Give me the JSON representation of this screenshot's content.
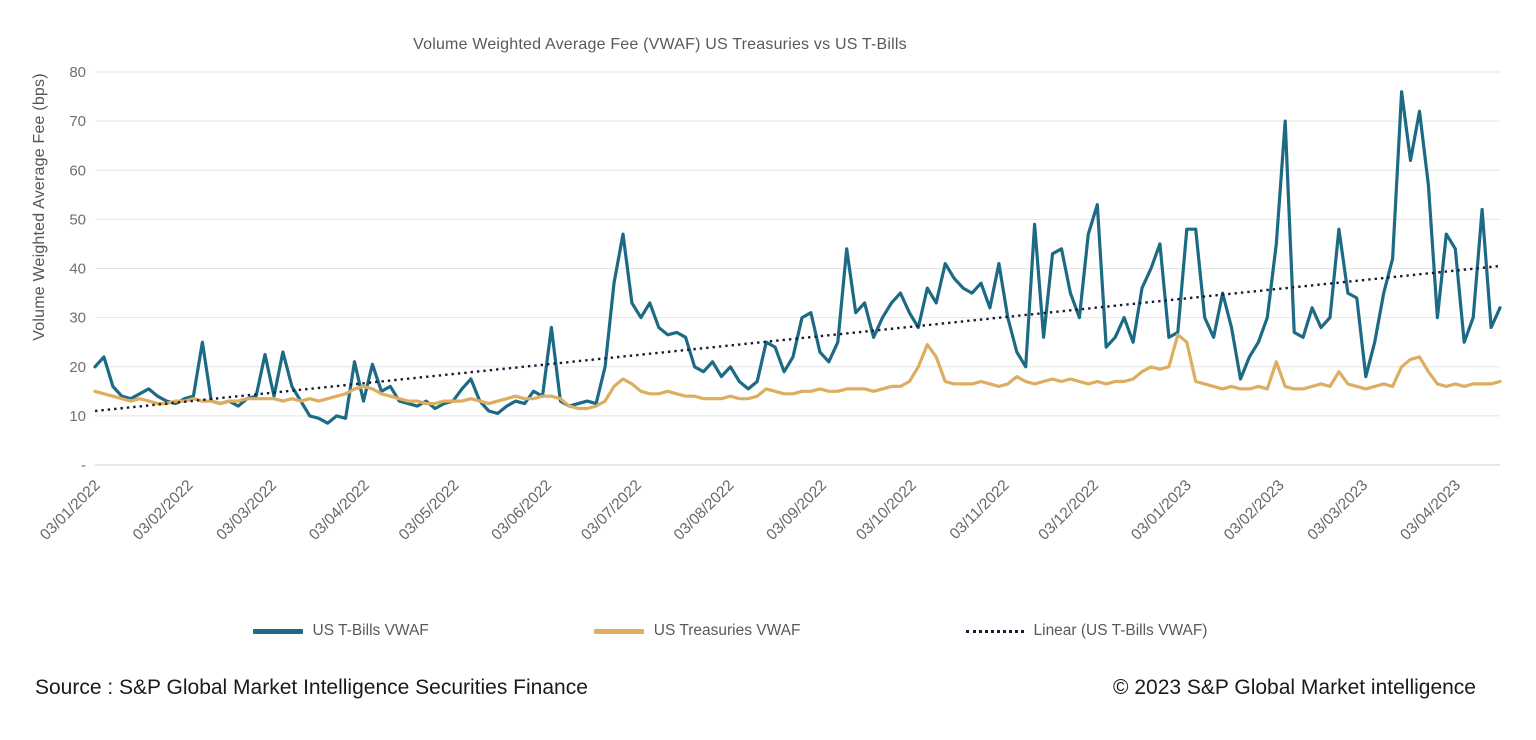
{
  "title": "Volume Weighted Average Fee (VWAF) US Treasuries vs US T-Bills",
  "y_axis_title": "Volume Weighted Average Fee (bps)",
  "footer": {
    "source": "Source : S&P Global Market Intelligence Securities Finance",
    "copyright": "© 2023 S&P Global Market intelligence"
  },
  "colors": {
    "tbills": "#1d6a84",
    "treasuries": "#ddad60",
    "trend": "#1a1a33",
    "grid": "#e4e4e4",
    "axis_text": "#6f6f6f"
  },
  "chart_data": {
    "type": "line",
    "title": "Volume Weighted Average Fee (VWAF) US Treasuries vs US T-Bills",
    "xlabel": "",
    "ylabel": "Volume Weighted Average Fee (bps)",
    "ylim": [
      0,
      80
    ],
    "y_ticks": [
      0,
      10,
      20,
      30,
      40,
      50,
      60,
      70,
      80
    ],
    "y_tick_label_zero": "-",
    "grid": "horizontal",
    "legend_position": "bottom",
    "x_tick_labels": [
      "03/01/2022",
      "03/02/2022",
      "03/03/2022",
      "03/04/2022",
      "03/05/2022",
      "03/06/2022",
      "03/07/2022",
      "03/08/2022",
      "03/09/2022",
      "03/10/2022",
      "03/11/2022",
      "03/12/2022",
      "03/01/2023",
      "03/02/2023",
      "03/03/2023",
      "03/04/2023"
    ],
    "x_tick_days": [
      0,
      31,
      59,
      90,
      120,
      151,
      181,
      212,
      243,
      273,
      304,
      334,
      365,
      396,
      424,
      455
    ],
    "total_days": 470,
    "series": [
      {
        "name": "US T-Bills VWAF",
        "color": "#1d6a84",
        "values": [
          20,
          22,
          16,
          14,
          13.5,
          14.5,
          15.5,
          14,
          13,
          12.5,
          13.5,
          14,
          25,
          13,
          12.5,
          13,
          12,
          13.5,
          14,
          22.5,
          14,
          23,
          16,
          13,
          10,
          9.5,
          8.5,
          10,
          9.5,
          21,
          13,
          20.5,
          15,
          16,
          13,
          12.5,
          12,
          13,
          11.5,
          12.5,
          13,
          15.5,
          17.5,
          13,
          11,
          10.5,
          12,
          13,
          12.5,
          15,
          14,
          28,
          13,
          12,
          12.5,
          13,
          12.5,
          20,
          37,
          47,
          33,
          30,
          33,
          28,
          26.5,
          27,
          26,
          20,
          19,
          21,
          18,
          20,
          17,
          15.5,
          17,
          25,
          24,
          19,
          22,
          30,
          31,
          23,
          21,
          25,
          44,
          31,
          33,
          26,
          30,
          33,
          35,
          31,
          28,
          36,
          33,
          41,
          38,
          36,
          35,
          37,
          32,
          41,
          30,
          23,
          20,
          49,
          26,
          43,
          44,
          35,
          30,
          47,
          53,
          24,
          26,
          30,
          25,
          36,
          40,
          45,
          26,
          27,
          48,
          48,
          30,
          26,
          35,
          28,
          17.5,
          22,
          25,
          30,
          45,
          70,
          27,
          26,
          32,
          28,
          30,
          48,
          35,
          34,
          18,
          25,
          35,
          42,
          76,
          62,
          72,
          57,
          30,
          47,
          44,
          25,
          30,
          52,
          28,
          32
        ]
      },
      {
        "name": "US Treasuries VWAF",
        "color": "#ddad60",
        "values": [
          15,
          14.5,
          14,
          13.5,
          13,
          13.5,
          13,
          12.5,
          12.5,
          13,
          13,
          13.5,
          13,
          13,
          12.5,
          13,
          13,
          13.5,
          13.5,
          13.5,
          13.5,
          13,
          13.5,
          13,
          13.5,
          13,
          13.5,
          14,
          14.5,
          15.5,
          16,
          15.5,
          14.5,
          14,
          13.5,
          13,
          13,
          12.5,
          12.5,
          13,
          13,
          13,
          13.5,
          13,
          12.5,
          13,
          13.5,
          14,
          13.5,
          13.5,
          14,
          14,
          13.5,
          12,
          11.5,
          11.5,
          12,
          13,
          16,
          17.5,
          16.5,
          15,
          14.5,
          14.5,
          15,
          14.5,
          14,
          14,
          13.5,
          13.5,
          13.5,
          14,
          13.5,
          13.5,
          14,
          15.5,
          15,
          14.5,
          14.5,
          15,
          15,
          15.5,
          15,
          15,
          15.5,
          15.5,
          15.5,
          15,
          15.5,
          16,
          16,
          17,
          20,
          24.5,
          22,
          17,
          16.5,
          16.5,
          16.5,
          17,
          16.5,
          16,
          16.5,
          18,
          17,
          16.5,
          17,
          17.5,
          17,
          17.5,
          17,
          16.5,
          17,
          16.5,
          17,
          17,
          17.5,
          19,
          20,
          19.5,
          20,
          26.5,
          25,
          17,
          16.5,
          16,
          15.5,
          16,
          15.5,
          15.5,
          16,
          15.5,
          21,
          16,
          15.5,
          15.5,
          16,
          16.5,
          16,
          19,
          16.5,
          16,
          15.5,
          16,
          16.5,
          16,
          20,
          21.5,
          22,
          19,
          16.5,
          16,
          16.5,
          16,
          16.5,
          16.5,
          16.5,
          17
        ]
      }
    ],
    "trend": {
      "name": "Linear (US T-Bills VWAF)",
      "series_ref": "US T-Bills VWAF",
      "color": "#1a1a33",
      "style": "dotted",
      "start_value": 11,
      "end_value": 40.5
    }
  }
}
